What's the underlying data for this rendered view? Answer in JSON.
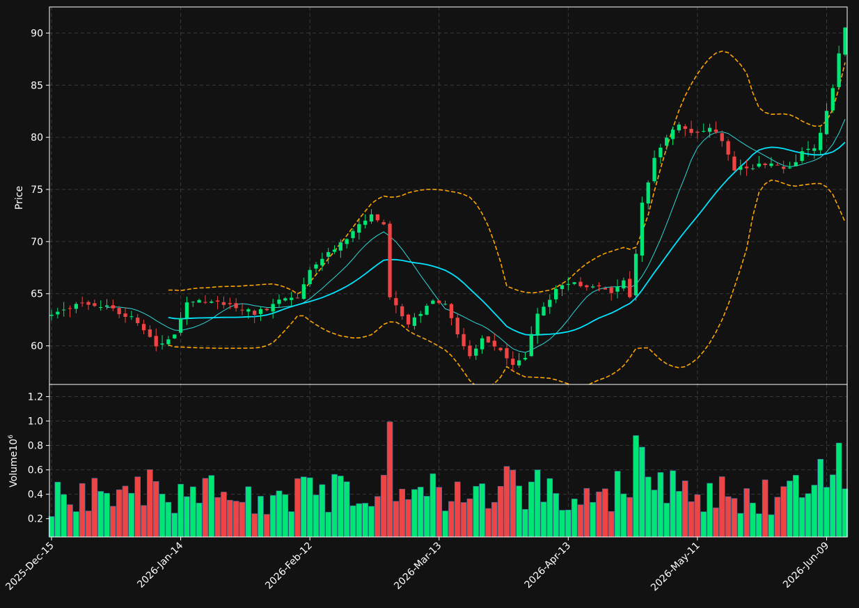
{
  "colors": {
    "background": "#121212",
    "axes": "#ffffff",
    "grid": "#3a3a3a",
    "up": "#00e676",
    "down": "#ef4444",
    "ma_short": "#2fd8d8",
    "ma_long": "#00e5ff",
    "bollinger": "#ffa500"
  },
  "chart_data": {
    "type": "candlestick",
    "price_panel": {
      "ylabel": "Price",
      "yticks": [
        60,
        65,
        70,
        75,
        80,
        85,
        90
      ],
      "ylim": [
        56.3,
        92.5
      ],
      "grid": true
    },
    "volume_panel": {
      "ylabel": "Volume",
      "ylabel_exponent": "10",
      "ylabel_exponent_power": "6",
      "yticks": [
        0.2,
        0.4,
        0.6,
        0.8,
        1.0,
        1.2
      ],
      "ytick_labels": [
        "0.2",
        "0.4",
        "0.6",
        "0.8",
        "1.0",
        "1.2"
      ],
      "ylim": [
        0.05,
        1.3
      ],
      "grid": true
    },
    "x_tick_labels": [
      "2025-Dec-15",
      "2026-Jan-14",
      "2026-Feb-12",
      "2026-Mar-13",
      "2026-Apr-13",
      "2026-May-11",
      "2026-Jun-09"
    ],
    "x_tick_index": [
      0,
      21,
      42,
      63,
      84,
      105,
      126
    ],
    "n_bars": 130,
    "anchors": [
      [
        0,
        63.1
      ],
      [
        5,
        64.1
      ],
      [
        10,
        63.6
      ],
      [
        13,
        62.6
      ],
      [
        17,
        60.1
      ],
      [
        20,
        61.2
      ],
      [
        22,
        64.1
      ],
      [
        26,
        64.3
      ],
      [
        30,
        63.8
      ],
      [
        33,
        63.0
      ],
      [
        37,
        64.2
      ],
      [
        40,
        64.6
      ],
      [
        42,
        67.5
      ],
      [
        46,
        69.2
      ],
      [
        50,
        71.6
      ],
      [
        52,
        72.6
      ],
      [
        54,
        71.6
      ],
      [
        55,
        64.6
      ],
      [
        58,
        62.1
      ],
      [
        62,
        64.1
      ],
      [
        64,
        64.1
      ],
      [
        66,
        61.1
      ],
      [
        68,
        59.2
      ],
      [
        70,
        60.6
      ],
      [
        72,
        59.8
      ],
      [
        75,
        58.4
      ],
      [
        77,
        59.0
      ],
      [
        79,
        63.2
      ],
      [
        81,
        64.6
      ],
      [
        83,
        66.0
      ],
      [
        86,
        65.8
      ],
      [
        89,
        65.6
      ],
      [
        91,
        65.0
      ],
      [
        93,
        66.5
      ],
      [
        94,
        64.5
      ],
      [
        96,
        73.5
      ],
      [
        98,
        78.0
      ],
      [
        100,
        79.8
      ],
      [
        102,
        81.2
      ],
      [
        104,
        80.4
      ],
      [
        107,
        80.8
      ],
      [
        109,
        79.8
      ],
      [
        111,
        77.0
      ],
      [
        114,
        77.2
      ],
      [
        117,
        77.5
      ],
      [
        120,
        77.0
      ],
      [
        122,
        78.5
      ],
      [
        124,
        79.0
      ],
      [
        125,
        80.5
      ],
      [
        126,
        82.3
      ],
      [
        127,
        84.8
      ],
      [
        128,
        88.0
      ],
      [
        129,
        90.6
      ]
    ],
    "ma_short_window": 10,
    "ma_long_window": 20,
    "bollinger_window": 20,
    "bollinger_k": 2
  }
}
